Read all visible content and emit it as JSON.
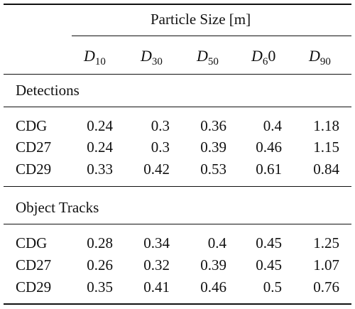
{
  "table": {
    "group_header": "Particle Size [m]",
    "columns": [
      {
        "symbol": "D",
        "sub": "10",
        "tail": ""
      },
      {
        "symbol": "D",
        "sub": "30",
        "tail": ""
      },
      {
        "symbol": "D",
        "sub": "50",
        "tail": ""
      },
      {
        "symbol": "D",
        "sub": "6",
        "tail": "0"
      },
      {
        "symbol": "D",
        "sub": "90",
        "tail": ""
      }
    ],
    "sections": [
      {
        "title": "Detections",
        "rows": [
          {
            "label": "CDG",
            "values": [
              "0.24",
              "0.3",
              "0.36",
              "0.4",
              "1.18"
            ]
          },
          {
            "label": "CD27",
            "values": [
              "0.24",
              "0.3",
              "0.39",
              "0.46",
              "1.15"
            ]
          },
          {
            "label": "CD29",
            "values": [
              "0.33",
              "0.42",
              "0.53",
              "0.61",
              "0.84"
            ]
          }
        ]
      },
      {
        "title": "Object Tracks",
        "rows": [
          {
            "label": "CDG",
            "values": [
              "0.28",
              "0.34",
              "0.4",
              "0.45",
              "1.25"
            ]
          },
          {
            "label": "CD27",
            "values": [
              "0.26",
              "0.32",
              "0.39",
              "0.45",
              "1.07"
            ]
          },
          {
            "label": "CD29",
            "values": [
              "0.35",
              "0.41",
              "0.46",
              "0.5",
              "0.76"
            ]
          }
        ]
      }
    ]
  }
}
